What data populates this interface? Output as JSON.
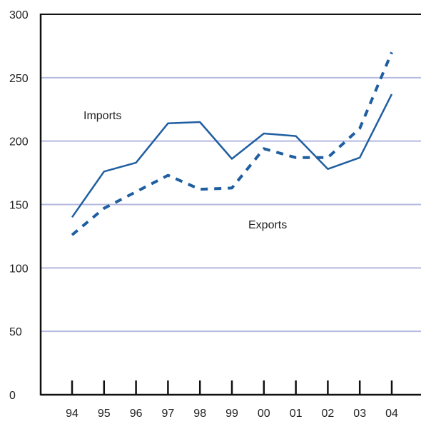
{
  "colors": {
    "series": "#1f5ea0",
    "grid": "#b4b9e0",
    "axis": "#111111",
    "text": "#222222"
  },
  "chart_data": {
    "type": "line",
    "title": "",
    "xlabel": "",
    "ylabel": "",
    "x": [
      "94",
      "95",
      "96",
      "97",
      "98",
      "99",
      "00",
      "01",
      "02",
      "03",
      "04"
    ],
    "ylim": [
      0,
      300
    ],
    "yticks": [
      0,
      50,
      100,
      150,
      200,
      250,
      300
    ],
    "grid": "horizontal",
    "series": [
      {
        "name": "Imports",
        "style": "solid",
        "values": [
          140,
          176,
          183,
          214,
          215,
          186,
          206,
          204,
          178,
          187,
          237
        ]
      },
      {
        "name": "Exports",
        "style": "dashed",
        "values": [
          126,
          147,
          160,
          173,
          162,
          163,
          194,
          187,
          187,
          210,
          270
        ]
      }
    ]
  }
}
